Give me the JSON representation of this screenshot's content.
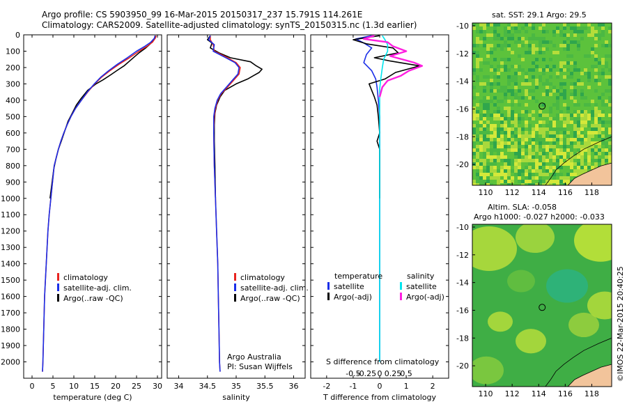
{
  "header": {
    "line1": "Argo profile: CS 5903950_99 16-Mar-2015 20150317_237 15.791S 114.261E",
    "line2": "Climatology: CARS2009. Satellite-adjusted climatology: synTS_20150315.nc (1.3d earlier)"
  },
  "colors": {
    "clim": "#e8231f",
    "sat": "#1a2ee8",
    "argo": "#000000",
    "sal_sat": "#00e5ee",
    "sal_argo": "#ff1fe0"
  },
  "chart_data": [
    {
      "type": "line",
      "id": "temperature",
      "xlabel": "temperature (deg C)",
      "ylabel": "",
      "xlim": [
        -2,
        31
      ],
      "ylim": [
        2100,
        0
      ],
      "xticks": [
        0,
        5,
        10,
        15,
        20,
        25,
        30
      ],
      "yticks": [
        0,
        100,
        200,
        300,
        400,
        500,
        600,
        700,
        800,
        900,
        1000,
        1100,
        1200,
        1300,
        1400,
        1500,
        1600,
        1700,
        1800,
        1900,
        2000
      ],
      "series": [
        {
          "name": "climatology",
          "color": "#e8231f",
          "points": [
            [
              29.7,
              5
            ],
            [
              29.5,
              20
            ],
            [
              28.8,
              45
            ],
            [
              27.5,
              70
            ],
            [
              25.6,
              100
            ],
            [
              23.3,
              140
            ],
            [
              20.8,
              180
            ],
            [
              18.6,
              220
            ],
            [
              16.6,
              260
            ],
            [
              15.0,
              300
            ],
            [
              13.3,
              350
            ],
            [
              11.8,
              400
            ],
            [
              10.4,
              450
            ],
            [
              9.3,
              500
            ],
            [
              8.4,
              550
            ],
            [
              7.6,
              600
            ],
            [
              6.9,
              650
            ],
            [
              6.3,
              700
            ],
            [
              5.8,
              750
            ],
            [
              5.3,
              800
            ],
            [
              4.9,
              900
            ],
            [
              4.5,
              1000
            ],
            [
              4.1,
              1100
            ],
            [
              3.8,
              1200
            ],
            [
              3.6,
              1300
            ],
            [
              3.4,
              1400
            ],
            [
              3.2,
              1500
            ],
            [
              3.0,
              1600
            ],
            [
              2.9,
              1700
            ],
            [
              2.8,
              1800
            ],
            [
              2.7,
              1900
            ],
            [
              2.6,
              2000
            ],
            [
              2.5,
              2060
            ]
          ]
        },
        {
          "name": "satellite-adj. clim.",
          "color": "#1a2ee8",
          "points": [
            [
              29.4,
              5
            ],
            [
              29.3,
              20
            ],
            [
              28.4,
              45
            ],
            [
              27.0,
              70
            ],
            [
              25.0,
              100
            ],
            [
              22.8,
              140
            ],
            [
              20.4,
              180
            ],
            [
              18.3,
              220
            ],
            [
              16.4,
              260
            ],
            [
              14.9,
              300
            ],
            [
              13.2,
              350
            ],
            [
              11.8,
              400
            ],
            [
              10.4,
              450
            ],
            [
              9.3,
              500
            ],
            [
              8.4,
              550
            ],
            [
              7.6,
              600
            ],
            [
              6.9,
              650
            ],
            [
              6.3,
              700
            ],
            [
              5.8,
              750
            ],
            [
              5.3,
              800
            ],
            [
              4.9,
              900
            ],
            [
              4.5,
              1000
            ],
            [
              4.1,
              1100
            ],
            [
              3.8,
              1200
            ],
            [
              3.6,
              1300
            ],
            [
              3.4,
              1400
            ],
            [
              3.2,
              1500
            ],
            [
              3.0,
              1600
            ],
            [
              2.9,
              1700
            ],
            [
              2.8,
              1800
            ],
            [
              2.7,
              1900
            ],
            [
              2.6,
              2000
            ],
            [
              2.5,
              2060
            ]
          ]
        },
        {
          "name": "Argo(..raw -QC)",
          "color": "#000000",
          "points": [
            [
              29.5,
              5
            ],
            [
              29.2,
              25
            ],
            [
              28.3,
              55
            ],
            [
              27.2,
              80
            ],
            [
              25.6,
              110
            ],
            [
              23.8,
              150
            ],
            [
              22.0,
              190
            ],
            [
              20.5,
              215
            ],
            [
              18.8,
              245
            ],
            [
              17.0,
              275
            ],
            [
              15.3,
              300
            ],
            [
              13.3,
              340
            ],
            [
              11.7,
              390
            ],
            [
              10.6,
              430
            ],
            [
              9.6,
              480
            ],
            [
              8.6,
              530
            ],
            [
              7.8,
              590
            ],
            [
              7.0,
              650
            ],
            [
              6.3,
              700
            ],
            [
              5.7,
              760
            ],
            [
              5.2,
              820
            ],
            [
              4.8,
              900
            ],
            [
              4.3,
              1000
            ]
          ]
        }
      ],
      "legend": [
        "climatology",
        "satellite-adj. clim.",
        "Argo(..raw -QC)"
      ]
    },
    {
      "type": "line",
      "id": "salinity",
      "xlabel": "salinity",
      "xlim": [
        33.8,
        36.2
      ],
      "ylim": [
        2100,
        0
      ],
      "xticks": [
        34,
        34.5,
        35,
        35.5,
        36
      ],
      "series": [
        {
          "name": "climatology",
          "color": "#e8231f",
          "points": [
            [
              34.55,
              5
            ],
            [
              34.55,
              30
            ],
            [
              34.6,
              60
            ],
            [
              34.62,
              100
            ],
            [
              34.85,
              140
            ],
            [
              35.0,
              170
            ],
            [
              35.07,
              200
            ],
            [
              35.05,
              240
            ],
            [
              34.95,
              280
            ],
            [
              34.85,
              320
            ],
            [
              34.74,
              360
            ],
            [
              34.68,
              400
            ],
            [
              34.64,
              450
            ],
            [
              34.62,
              500
            ],
            [
              34.61,
              600
            ],
            [
              34.62,
              800
            ],
            [
              34.64,
              1000
            ],
            [
              34.66,
              1200
            ],
            [
              34.68,
              1400
            ],
            [
              34.69,
              1600
            ],
            [
              34.7,
              1800
            ],
            [
              34.71,
              2000
            ],
            [
              34.72,
              2060
            ]
          ]
        },
        {
          "name": "satellite-adj. clim.",
          "color": "#1a2ee8",
          "points": [
            [
              34.55,
              5
            ],
            [
              34.52,
              30
            ],
            [
              34.62,
              60
            ],
            [
              34.6,
              100
            ],
            [
              34.82,
              140
            ],
            [
              34.98,
              170
            ],
            [
              35.05,
              200
            ],
            [
              35.03,
              240
            ],
            [
              34.93,
              280
            ],
            [
              34.83,
              320
            ],
            [
              34.73,
              360
            ],
            [
              34.67,
              400
            ],
            [
              34.63,
              450
            ],
            [
              34.61,
              500
            ],
            [
              34.61,
              600
            ],
            [
              34.62,
              800
            ],
            [
              34.64,
              1000
            ],
            [
              34.66,
              1200
            ],
            [
              34.68,
              1400
            ],
            [
              34.69,
              1600
            ],
            [
              34.7,
              1800
            ],
            [
              34.71,
              2000
            ],
            [
              34.72,
              2060
            ]
          ]
        },
        {
          "name": "Argo(..raw -QC)",
          "color": "#000000",
          "points": [
            [
              34.55,
              5
            ],
            [
              34.5,
              30
            ],
            [
              34.58,
              50
            ],
            [
              34.55,
              80
            ],
            [
              34.7,
              110
            ],
            [
              34.9,
              140
            ],
            [
              35.25,
              165
            ],
            [
              35.35,
              190
            ],
            [
              35.45,
              210
            ],
            [
              35.4,
              230
            ],
            [
              35.3,
              250
            ],
            [
              35.2,
              270
            ],
            [
              35.0,
              300
            ],
            [
              34.8,
              340
            ],
            [
              34.72,
              380
            ],
            [
              34.66,
              430
            ],
            [
              34.63,
              480
            ],
            [
              34.62,
              550
            ],
            [
              34.62,
              650
            ],
            [
              34.63,
              800
            ],
            [
              34.64,
              1000
            ]
          ]
        }
      ],
      "legend": [
        "climatology",
        "satellite-adj. clim.",
        "Argo(..raw -QC)"
      ],
      "annotation": [
        "Argo Australia",
        "PI: Susan Wijffels"
      ]
    },
    {
      "type": "line",
      "id": "difference",
      "xlabel": "T difference from climatology",
      "xlabel_top": "S difference from climatology",
      "xlim": [
        -2.6,
        2.6
      ],
      "ylim": [
        2100,
        0
      ],
      "xticks": [
        -2,
        -1,
        0,
        1,
        2
      ],
      "xticks_top": [
        "-0.5",
        "-0.25",
        "0",
        "0.25",
        "0.5"
      ],
      "series": [
        {
          "name": "temperature satellite",
          "color": "#1a2ee8",
          "points": [
            [
              -0.3,
              5
            ],
            [
              -0.9,
              25
            ],
            [
              -0.6,
              50
            ],
            [
              -0.3,
              80
            ],
            [
              -0.5,
              120
            ],
            [
              -0.6,
              170
            ],
            [
              -0.3,
              220
            ],
            [
              -0.15,
              270
            ],
            [
              -0.1,
              320
            ],
            [
              -0.05,
              400
            ],
            [
              0,
              500
            ],
            [
              0,
              800
            ],
            [
              0,
              1200
            ],
            [
              0,
              1600
            ],
            [
              0,
              2000
            ]
          ]
        },
        {
          "name": "temperature Argo(-adj)",
          "color": "#000000",
          "points": [
            [
              0,
              5
            ],
            [
              -1.0,
              30
            ],
            [
              -0.5,
              55
            ],
            [
              0.5,
              80
            ],
            [
              0.7,
              110
            ],
            [
              -0.2,
              140
            ],
            [
              0.4,
              160
            ],
            [
              1.5,
              190
            ],
            [
              0.6,
              230
            ],
            [
              0.2,
              270
            ],
            [
              -0.4,
              300
            ],
            [
              -0.3,
              340
            ],
            [
              -0.2,
              380
            ],
            [
              -0.1,
              430
            ],
            [
              -0.05,
              500
            ],
            [
              0,
              600
            ],
            [
              -0.1,
              650
            ],
            [
              0,
              700
            ],
            [
              0,
              800
            ],
            [
              0,
              1000
            ]
          ]
        },
        {
          "name": "salinity satellite",
          "color": "#00e5ee",
          "points": [
            [
              0.1,
              5
            ],
            [
              0.2,
              30
            ],
            [
              0.3,
              60
            ],
            [
              0.3,
              100
            ],
            [
              0.15,
              150
            ],
            [
              0.1,
              200
            ],
            [
              0.05,
              260
            ],
            [
              0.0,
              330
            ],
            [
              0.0,
              400
            ],
            [
              0.0,
              600
            ],
            [
              0.0,
              900
            ],
            [
              0.0,
              1300
            ],
            [
              0.0,
              1700
            ],
            [
              0.0,
              2000
            ]
          ]
        },
        {
          "name": "salinity Argo(-adj)",
          "color": "#ff1fe0",
          "points": [
            [
              -0.2,
              5
            ],
            [
              -0.6,
              25
            ],
            [
              0.3,
              45
            ],
            [
              0.5,
              70
            ],
            [
              1.0,
              100
            ],
            [
              0.4,
              130
            ],
            [
              1.3,
              170
            ],
            [
              1.6,
              190
            ],
            [
              1.1,
              220
            ],
            [
              0.8,
              250
            ],
            [
              0.3,
              280
            ],
            [
              0.1,
              320
            ],
            [
              0.0,
              380
            ]
          ]
        }
      ],
      "legend_temperature": [
        "temperature",
        "satellite",
        "Argo(-adj)"
      ],
      "legend_salinity": [
        "salinity",
        "satellite",
        "Argo(-adj)"
      ]
    },
    {
      "type": "heatmap",
      "id": "sst_map",
      "title": "sat. SST: 29.1  Argo: 29.5",
      "xticks": [
        110,
        112,
        114,
        116,
        118
      ],
      "yticks": [
        -10,
        -12,
        -14,
        -16,
        -18,
        -20
      ],
      "xlim": [
        109,
        119.5
      ],
      "ylim": [
        -21.5,
        -9.8
      ],
      "marker": {
        "lon": 114.261,
        "lat": -15.791
      }
    },
    {
      "type": "heatmap",
      "id": "sla_map",
      "title": "Altim. SLA: -0.058",
      "subtitle": "Argo h1000: -0.027 h2000: -0.033",
      "xticks": [
        110,
        112,
        114,
        116,
        118
      ],
      "yticks": [
        -10,
        -12,
        -14,
        -16,
        -18,
        -20
      ],
      "xlim": [
        109,
        119.5
      ],
      "ylim": [
        -21.5,
        -9.8
      ],
      "marker": {
        "lon": 114.261,
        "lat": -15.791
      }
    }
  ],
  "credit": "©IMOS 22-Mar-2015 20:40:25"
}
